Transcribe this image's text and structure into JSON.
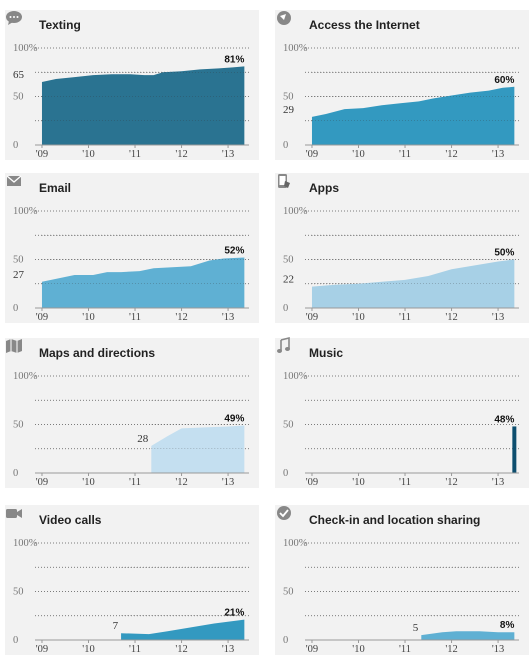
{
  "colors": {
    "panel_bg": "#f2f2f2",
    "dark_teal": "#2a7391",
    "mid_blue": "#3399c0",
    "light_blue": "#5fb0d3",
    "pale_blue": "#a7d0e6",
    "palest_blue": "#c4dff0",
    "navy": "#0d4e6e",
    "icon_gray": "#888888"
  },
  "panels": [
    {
      "title": "Texting",
      "icon": "speech-bubble-icon",
      "fill": "#2a7391",
      "start_label": "65",
      "end_label": "81%",
      "y_ticks": [
        "100%",
        "50",
        "0"
      ],
      "x_ticks": [
        {
          "t": 2009,
          "label": "'09"
        },
        {
          "t": 2010,
          "label": "'10"
        },
        {
          "t": 2011,
          "label": "'11"
        },
        {
          "t": 2012,
          "label": "'12"
        },
        {
          "t": 2013,
          "label": "'13"
        }
      ]
    },
    {
      "title": "Access the Internet",
      "icon": "globe-icon",
      "fill": "#3399c0",
      "start_label": "29",
      "end_label": "60%",
      "y_ticks": [
        "100%",
        "50",
        "0"
      ],
      "x_ticks": [
        {
          "t": 2009,
          "label": "'09"
        },
        {
          "t": 2010,
          "label": "'10"
        },
        {
          "t": 2011,
          "label": "'11"
        },
        {
          "t": 2012,
          "label": "'12"
        },
        {
          "t": 2013,
          "label": "'13"
        }
      ]
    },
    {
      "title": "Email",
      "icon": "envelope-icon",
      "fill": "#5fb0d3",
      "start_label": "27",
      "end_label": "52%",
      "y_ticks": [
        "100%",
        "50",
        "0"
      ],
      "x_ticks": [
        {
          "t": 2009,
          "label": "'09"
        },
        {
          "t": 2010,
          "label": "'10"
        },
        {
          "t": 2011,
          "label": "'11"
        },
        {
          "t": 2012,
          "label": "'12"
        },
        {
          "t": 2013,
          "label": "'13"
        }
      ]
    },
    {
      "title": "Apps",
      "icon": "phone-tap-icon",
      "fill": "#a7d0e6",
      "start_label": "22",
      "end_label": "50%",
      "y_ticks": [
        "100%",
        "50",
        "0"
      ],
      "x_ticks": [
        {
          "t": 2009,
          "label": "'09"
        },
        {
          "t": 2010,
          "label": "'10"
        },
        {
          "t": 2011,
          "label": "'11"
        },
        {
          "t": 2012,
          "label": "'12"
        },
        {
          "t": 2013,
          "label": "'13"
        }
      ]
    },
    {
      "title": "Maps and directions",
      "icon": "map-icon",
      "fill": "#c4dff0",
      "start_label": "28",
      "end_label": "49%",
      "y_ticks": [
        "100%",
        "50",
        "0"
      ],
      "x_ticks": [
        {
          "t": 2009,
          "label": "'09"
        },
        {
          "t": 2010,
          "label": "'10"
        },
        {
          "t": 2011,
          "label": "'11"
        },
        {
          "t": 2012,
          "label": "'12"
        },
        {
          "t": 2013,
          "label": "'13"
        }
      ]
    },
    {
      "title": "Music",
      "icon": "music-note-icon",
      "fill": "#0d4e6e",
      "start_label": "",
      "end_label": "48%",
      "y_ticks": [
        "100%",
        "50",
        "0"
      ],
      "x_ticks": [
        {
          "t": 2009,
          "label": "'09"
        },
        {
          "t": 2010,
          "label": "'10"
        },
        {
          "t": 2011,
          "label": "'11"
        },
        {
          "t": 2012,
          "label": "'12"
        },
        {
          "t": 2013,
          "label": "'13"
        }
      ]
    },
    {
      "title": "Video calls",
      "icon": "video-camera-icon",
      "fill": "#3399c0",
      "start_label": "7",
      "end_label": "21%",
      "y_ticks": [
        "100%",
        "50",
        "0"
      ],
      "x_ticks": [
        {
          "t": 2009,
          "label": "'09"
        },
        {
          "t": 2010,
          "label": "'10"
        },
        {
          "t": 2011,
          "label": "'11"
        },
        {
          "t": 2012,
          "label": "'12"
        },
        {
          "t": 2013,
          "label": "'13"
        }
      ]
    },
    {
      "title": "Check-in and location sharing",
      "icon": "checkmark-badge-icon",
      "fill": "#5fb0d3",
      "start_label": "5",
      "end_label": "8%",
      "y_ticks": [
        "100%",
        "50",
        "0"
      ],
      "x_ticks": [
        {
          "t": 2009,
          "label": "'09"
        },
        {
          "t": 2010,
          "label": "'10"
        },
        {
          "t": 2011,
          "label": "'11"
        },
        {
          "t": 2012,
          "label": "'12"
        },
        {
          "t": 2013,
          "label": "'13"
        }
      ]
    }
  ],
  "chart_data": [
    {
      "type": "area",
      "title": "Texting",
      "x_unit": "year",
      "xlim": [
        2008.85,
        2013.45
      ],
      "ylim": [
        0,
        100
      ],
      "yticks": [
        0,
        50,
        100
      ],
      "x": [
        2009.0,
        2009.3,
        2009.7,
        2010.1,
        2010.5,
        2010.9,
        2011.2,
        2011.4,
        2011.6,
        2012.0,
        2012.4,
        2012.8,
        2013.1,
        2013.35
      ],
      "y": [
        65,
        68,
        70,
        72,
        73,
        73,
        72,
        72,
        75,
        76,
        78,
        79,
        80,
        81
      ]
    },
    {
      "type": "area",
      "title": "Access the Internet",
      "x_unit": "year",
      "xlim": [
        2008.85,
        2013.45
      ],
      "ylim": [
        0,
        100
      ],
      "yticks": [
        0,
        50,
        100
      ],
      "x": [
        2009.0,
        2009.3,
        2009.7,
        2010.1,
        2010.5,
        2010.9,
        2011.3,
        2011.6,
        2012.0,
        2012.4,
        2012.8,
        2013.1,
        2013.35
      ],
      "y": [
        29,
        32,
        37,
        38,
        41,
        43,
        45,
        48,
        51,
        54,
        56,
        59,
        60
      ]
    },
    {
      "type": "area",
      "title": "Email",
      "x_unit": "year",
      "xlim": [
        2008.85,
        2013.45
      ],
      "ylim": [
        0,
        100
      ],
      "yticks": [
        0,
        50,
        100
      ],
      "x": [
        2009.0,
        2009.3,
        2009.7,
        2010.1,
        2010.4,
        2010.7,
        2011.1,
        2011.4,
        2011.8,
        2012.2,
        2012.6,
        2012.9,
        2013.35
      ],
      "y": [
        27,
        30,
        34,
        34,
        37,
        37,
        38,
        41,
        42,
        43,
        49,
        51,
        52
      ]
    },
    {
      "type": "area",
      "title": "Apps",
      "x_unit": "year",
      "xlim": [
        2008.85,
        2013.45
      ],
      "ylim": [
        0,
        100
      ],
      "yticks": [
        0,
        50,
        100
      ],
      "x": [
        2009.0,
        2009.5,
        2010.0,
        2010.5,
        2011.0,
        2011.5,
        2012.0,
        2012.5,
        2013.0,
        2013.35
      ],
      "y": [
        22,
        24,
        25,
        27,
        29,
        33,
        40,
        44,
        48,
        50
      ]
    },
    {
      "type": "area",
      "title": "Maps and directions",
      "x_unit": "year",
      "xlim": [
        2008.85,
        2013.45
      ],
      "ylim": [
        0,
        100
      ],
      "yticks": [
        0,
        50,
        100
      ],
      "x": [
        2011.35,
        2011.7,
        2012.0,
        2012.5,
        2013.0,
        2013.35
      ],
      "y": [
        28,
        38,
        46,
        47,
        48,
        49
      ]
    },
    {
      "type": "bar",
      "title": "Music",
      "x_unit": "year",
      "xlim": [
        2008.85,
        2013.45
      ],
      "ylim": [
        0,
        100
      ],
      "yticks": [
        0,
        50,
        100
      ],
      "x": [
        2013.35
      ],
      "y": [
        48
      ]
    },
    {
      "type": "area",
      "title": "Video calls",
      "x_unit": "year",
      "xlim": [
        2008.85,
        2013.45
      ],
      "ylim": [
        0,
        100
      ],
      "yticks": [
        0,
        50,
        100
      ],
      "x": [
        2010.7,
        2011.3,
        2011.7,
        2012.2,
        2012.7,
        2013.35
      ],
      "y": [
        7,
        6,
        9,
        13,
        17,
        21
      ]
    },
    {
      "type": "area",
      "title": "Check-in and location sharing",
      "x_unit": "year",
      "xlim": [
        2008.85,
        2013.45
      ],
      "ylim": [
        0,
        100
      ],
      "yticks": [
        0,
        50,
        100
      ],
      "x": [
        2011.35,
        2011.8,
        2012.1,
        2012.6,
        2013.0,
        2013.35
      ],
      "y": [
        5,
        8,
        9,
        9,
        8,
        8
      ]
    }
  ]
}
